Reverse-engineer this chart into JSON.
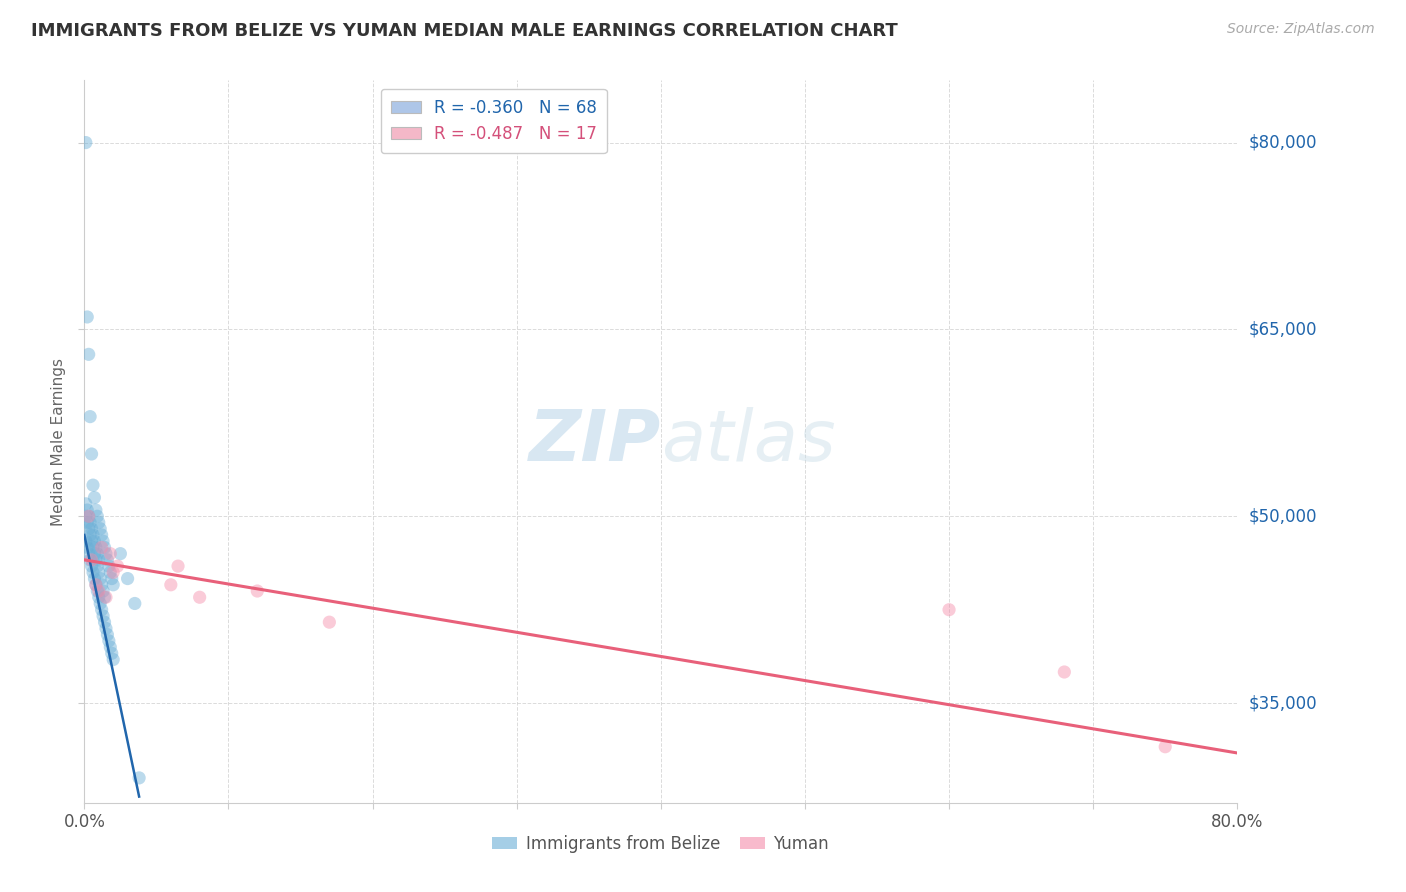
{
  "title": "IMMIGRANTS FROM BELIZE VS YUMAN MEDIAN MALE EARNINGS CORRELATION CHART",
  "source": "Source: ZipAtlas.com",
  "ylabel": "Median Male Earnings",
  "xlim": [
    0.0,
    0.8
  ],
  "ylim": [
    27000,
    85000
  ],
  "yticks": [
    35000,
    50000,
    65000,
    80000
  ],
  "ytick_labels": [
    "$35,000",
    "$50,000",
    "$65,000",
    "$80,000"
  ],
  "xticks": [
    0.0,
    0.1,
    0.2,
    0.3,
    0.4,
    0.5,
    0.6,
    0.7,
    0.8
  ],
  "xtick_labels": [
    "0.0%",
    "",
    "",
    "",
    "",
    "",
    "",
    "",
    "80.0%"
  ],
  "legend_entries": [
    {
      "label": "R = -0.360   N = 68",
      "color": "#aec6e8",
      "text_color": "#2166ac"
    },
    {
      "label": "R = -0.487   N = 17",
      "color": "#f4b8c8",
      "text_color": "#d4507a"
    }
  ],
  "watermark_zip": "ZIP",
  "watermark_atlas": "atlas",
  "belize_scatter_x": [
    0.001,
    0.001,
    0.002,
    0.002,
    0.003,
    0.003,
    0.004,
    0.004,
    0.005,
    0.005,
    0.006,
    0.006,
    0.007,
    0.007,
    0.008,
    0.008,
    0.009,
    0.009,
    0.01,
    0.01,
    0.011,
    0.011,
    0.012,
    0.012,
    0.013,
    0.013,
    0.014,
    0.014,
    0.015,
    0.015,
    0.016,
    0.016,
    0.017,
    0.017,
    0.018,
    0.018,
    0.019,
    0.019,
    0.02,
    0.02,
    0.001,
    0.002,
    0.003,
    0.004,
    0.005,
    0.006,
    0.007,
    0.008,
    0.009,
    0.01,
    0.011,
    0.012,
    0.013,
    0.014,
    0.001,
    0.002,
    0.003,
    0.004,
    0.005,
    0.006,
    0.007,
    0.008,
    0.009,
    0.01,
    0.025,
    0.03,
    0.035,
    0.038
  ],
  "belize_scatter_y": [
    80000,
    48000,
    66000,
    47500,
    63000,
    47000,
    58000,
    46500,
    55000,
    46000,
    52500,
    45500,
    51500,
    45000,
    50500,
    44500,
    50000,
    44000,
    49500,
    43500,
    49000,
    43000,
    48500,
    42500,
    48000,
    42000,
    47500,
    41500,
    47000,
    41000,
    46500,
    40500,
    46000,
    40000,
    45500,
    39500,
    45000,
    39000,
    44500,
    38500,
    50000,
    49500,
    49000,
    48500,
    48000,
    47500,
    47000,
    46500,
    46000,
    45500,
    45000,
    44500,
    44000,
    43500,
    51000,
    50500,
    50000,
    49500,
    49000,
    48500,
    48000,
    47500,
    47000,
    46500,
    47000,
    45000,
    43000,
    29000
  ],
  "yuman_scatter_x": [
    0.003,
    0.005,
    0.008,
    0.01,
    0.012,
    0.015,
    0.018,
    0.02,
    0.023,
    0.06,
    0.065,
    0.08,
    0.12,
    0.17,
    0.6,
    0.68,
    0.75
  ],
  "yuman_scatter_y": [
    50000,
    46500,
    44500,
    44000,
    47500,
    43500,
    47000,
    45500,
    46000,
    44500,
    46000,
    43500,
    44000,
    41500,
    42500,
    37500,
    31500
  ],
  "belize_line_x": [
    0.0,
    0.038
  ],
  "belize_line_y": [
    48500,
    27500
  ],
  "yuman_line_x": [
    0.0,
    0.8
  ],
  "yuman_line_y": [
    46500,
    31000
  ],
  "belize_dot_color": "#6aaed6",
  "yuman_dot_color": "#f48caa",
  "belize_line_color": "#2166ac",
  "yuman_line_color": "#e8607a",
  "background_color": "#ffffff",
  "grid_color": "#cccccc",
  "title_color": "#333333",
  "axis_label_color": "#666666",
  "right_label_color": "#2166ac"
}
